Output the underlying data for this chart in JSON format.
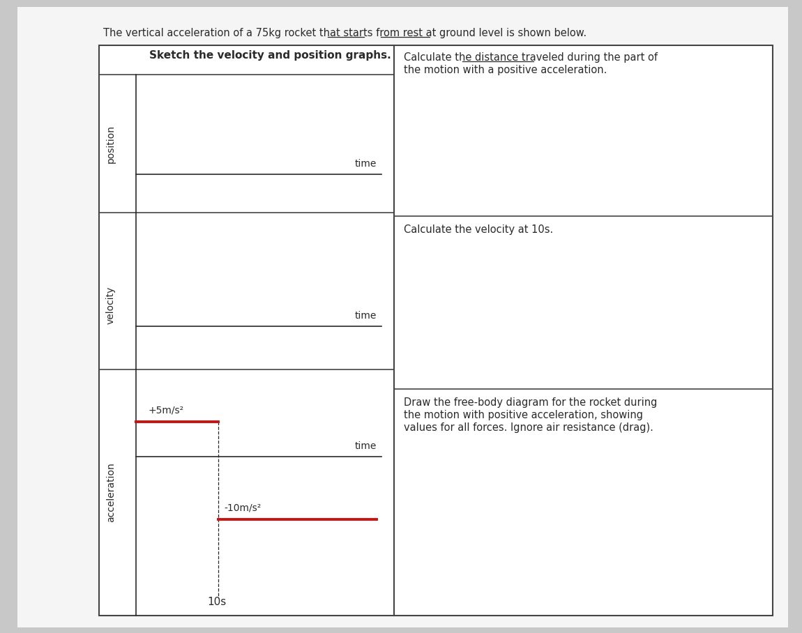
{
  "bg_color": "#c8c8c8",
  "paper_color": "#f5f5f5",
  "title_full": "The vertical acceleration of a 75kg rocket that starts from rest at ground level is shown below.",
  "title_prefix": "The vertical acceleration of a 75kg rocket that starts ",
  "title_fr": "from rest",
  "title_mid": " at ",
  "title_gl": "ground level",
  "title_suffix": " is shown below.",
  "left_panel_title": "Sketch the velocity and position graphs.",
  "calc_dist_line1": "Calculate the distance traveled during the part of",
  "calc_dist_line2": "the motion with a positive acceleration.",
  "calc_dist_underline": "distance traveled",
  "calc_vel": "Calculate the velocity at 10s.",
  "fbd_line1": "Draw the free-body diagram for the rocket during",
  "fbd_line2": "the motion with positive acceleration, showing",
  "fbd_line3": "values for all forces. Ignore air resistance (drag).",
  "accel_pos_label": "+5m/s²",
  "accel_neg_label": "-10m/s²",
  "time_label": "time",
  "label_10s": "10s",
  "label_position": "position",
  "label_velocity": "velocity",
  "label_acceleration": "acceleration",
  "red_color": "#cc1111",
  "dark_color": "#2a2a2a",
  "border_color": "#444444",
  "line_color": "#2a2a2a",
  "white": "#ffffff"
}
